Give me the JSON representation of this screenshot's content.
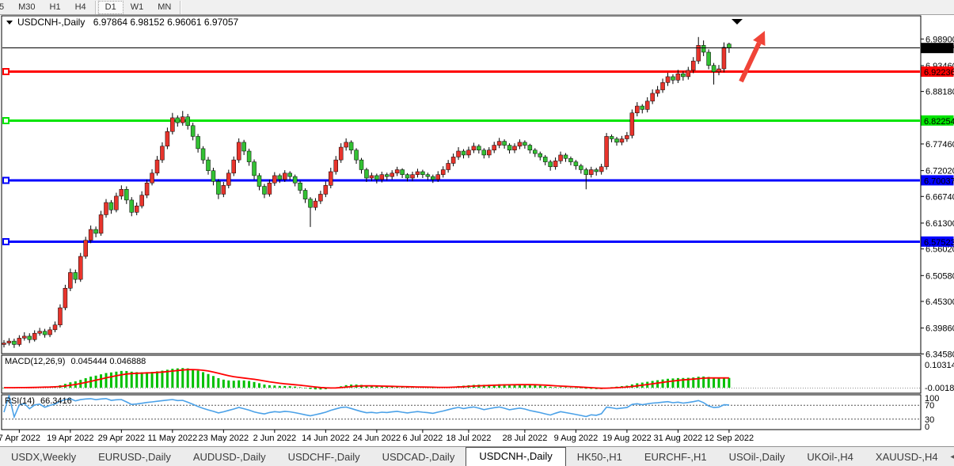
{
  "toolbar": {
    "timeframes": [
      "5",
      "M30",
      "H1",
      "H4",
      "D1",
      "W1",
      "MN"
    ],
    "active_timeframe": "D1"
  },
  "chart": {
    "symbol_label": "USDCNH-,Daily",
    "ohlc_label": "6.97864 6.98152 6.96061 6.97057"
  },
  "chart_data": {
    "type": "candlestick",
    "symbol": "USDCNH-",
    "timeframe": "Daily",
    "title": "USDCNH-,Daily",
    "last_ohlc": {
      "open": 6.97864,
      "high": 6.98152,
      "low": 6.96061,
      "close": 6.97057
    },
    "ylim": [
      6.3463,
      7.0363
    ],
    "grid": false,
    "up_candles_are_red": true,
    "price_axis_ticks": [
      "6.98900",
      "6.93460",
      "6.88180",
      "6.77460",
      "6.72020",
      "6.66740",
      "6.61300",
      "6.56020",
      "6.50580",
      "6.45300",
      "6.39860",
      "6.34580"
    ],
    "current_price": {
      "value": 6.97057,
      "label": "6.97057"
    },
    "hlines": [
      {
        "price": 6.92236,
        "label": "6.92236",
        "color": "#ff0000",
        "text_color": "#ffffff"
      },
      {
        "price": 6.82254,
        "label": "6.82254",
        "color": "#00e400",
        "text_color": "#000000"
      },
      {
        "price": 6.70037,
        "label": "6.70037",
        "color": "#0000ff",
        "text_color": "#ffffff"
      },
      {
        "price": 6.57523,
        "label": "6.57523",
        "color": "#0000ff",
        "text_color": "#ffffff"
      }
    ],
    "date_ticks": {
      "labels": [
        "7 Apr 2022",
        "19 Apr 2022",
        "29 Apr 2022",
        "11 May 2022",
        "23 May 2022",
        "2 Jun 2022",
        "14 Jun 2022",
        "24 Jun 2022",
        "6 Jul 2022",
        "18 Jul 2022",
        "28 Jul 2022",
        "9 Aug 2022",
        "19 Aug 2022",
        "31 Aug 2022",
        "12 Sep 2022"
      ],
      "candle_indices": [
        3,
        13,
        23,
        33,
        43,
        53,
        63,
        73,
        82,
        91,
        102,
        112,
        122,
        132,
        142
      ]
    },
    "indicators": {
      "macd": {
        "name_label": "MACD(12,26,9)",
        "values_label": "0.045444 0.046888",
        "axis_max": "0.103149",
        "axis_min": "-0.001805",
        "ylim": [
          -0.0249,
          0.146
        ],
        "hist_color": "#00c000",
        "signal_color": "#ff0000"
      },
      "rsi": {
        "name_label": "RSI(14)",
        "value_label": "66.3416",
        "levels": [
          "100",
          "70",
          "30",
          "0"
        ],
        "dashed_levels": [
          70,
          30
        ],
        "ylim": [
          0,
          100
        ],
        "line_color": "#4aa1e8"
      }
    },
    "annotations": [
      {
        "type": "up-arrow",
        "color": "#f04438",
        "tail": [
          936,
          84
        ],
        "tip": [
          966,
          20
        ]
      },
      {
        "type": "down-triangle-marker",
        "color": "#000000",
        "x": 931,
        "y": 5
      }
    ],
    "colors": {
      "bull_body": "#e8342c",
      "bear_body": "#33c133",
      "wick": "#000000",
      "panel_border": "#000000",
      "current_price_line": "#000000"
    },
    "ohlc": [
      [
        6.365,
        6.374,
        6.359,
        6.368
      ],
      [
        6.368,
        6.378,
        6.363,
        6.372
      ],
      [
        6.372,
        6.377,
        6.358,
        6.365
      ],
      [
        6.365,
        6.384,
        6.361,
        6.378
      ],
      [
        6.378,
        6.39,
        6.373,
        6.382
      ],
      [
        6.382,
        6.388,
        6.368,
        6.375
      ],
      [
        6.375,
        6.394,
        6.371,
        6.388
      ],
      [
        6.388,
        6.399,
        6.383,
        6.392
      ],
      [
        6.392,
        6.397,
        6.379,
        6.385
      ],
      [
        6.385,
        6.401,
        6.38,
        6.395
      ],
      [
        6.395,
        6.412,
        6.39,
        6.405
      ],
      [
        6.405,
        6.447,
        6.4,
        6.44
      ],
      [
        6.44,
        6.487,
        6.435,
        6.48
      ],
      [
        6.48,
        6.52,
        6.474,
        6.512
      ],
      [
        6.512,
        6.518,
        6.49,
        6.498
      ],
      [
        6.498,
        6.552,
        6.493,
        6.545
      ],
      [
        6.545,
        6.585,
        6.54,
        6.578
      ],
      [
        6.578,
        6.608,
        6.572,
        6.6
      ],
      [
        6.6,
        6.606,
        6.584,
        6.592
      ],
      [
        6.592,
        6.638,
        6.587,
        6.63
      ],
      [
        6.63,
        6.662,
        6.624,
        6.655
      ],
      [
        6.655,
        6.66,
        6.632,
        6.64
      ],
      [
        6.64,
        6.675,
        6.635,
        6.668
      ],
      [
        6.668,
        6.69,
        6.661,
        6.682
      ],
      [
        6.682,
        6.688,
        6.652,
        6.66
      ],
      [
        6.66,
        6.666,
        6.627,
        6.635
      ],
      [
        6.635,
        6.655,
        6.629,
        6.648
      ],
      [
        6.648,
        6.678,
        6.643,
        6.67
      ],
      [
        6.67,
        6.702,
        6.664,
        6.695
      ],
      [
        6.695,
        6.723,
        6.69,
        6.715
      ],
      [
        6.715,
        6.75,
        6.71,
        6.742
      ],
      [
        6.742,
        6.778,
        6.736,
        6.77
      ],
      [
        6.77,
        6.808,
        6.764,
        6.8
      ],
      [
        6.8,
        6.838,
        6.794,
        6.828
      ],
      [
        6.828,
        6.833,
        6.81,
        6.818
      ],
      [
        6.818,
        6.842,
        6.812,
        6.83
      ],
      [
        6.83,
        6.836,
        6.804,
        6.812
      ],
      [
        6.812,
        6.818,
        6.782,
        6.79
      ],
      [
        6.79,
        6.795,
        6.757,
        6.765
      ],
      [
        6.765,
        6.77,
        6.734,
        6.742
      ],
      [
        6.742,
        6.748,
        6.712,
        6.72
      ],
      [
        6.72,
        6.726,
        6.69,
        6.698
      ],
      [
        6.698,
        6.703,
        6.662,
        6.672
      ],
      [
        6.672,
        6.697,
        6.666,
        6.69
      ],
      [
        6.69,
        6.722,
        6.684,
        6.715
      ],
      [
        6.715,
        6.749,
        6.709,
        6.742
      ],
      [
        6.742,
        6.786,
        6.736,
        6.778
      ],
      [
        6.778,
        6.783,
        6.752,
        6.76
      ],
      [
        6.76,
        6.765,
        6.73,
        6.738
      ],
      [
        6.738,
        6.743,
        6.702,
        6.71
      ],
      [
        6.71,
        6.715,
        6.68,
        6.688
      ],
      [
        6.688,
        6.693,
        6.664,
        6.672
      ],
      [
        6.672,
        6.702,
        6.667,
        6.695
      ],
      [
        6.695,
        6.717,
        6.689,
        6.71
      ],
      [
        6.71,
        6.714,
        6.695,
        6.702
      ],
      [
        6.702,
        6.721,
        6.697,
        6.715
      ],
      [
        6.715,
        6.719,
        6.701,
        6.708
      ],
      [
        6.708,
        6.712,
        6.688,
        6.695
      ],
      [
        6.695,
        6.699,
        6.673,
        6.68
      ],
      [
        6.68,
        6.684,
        6.654,
        6.662
      ],
      [
        6.662,
        6.666,
        6.605,
        6.645
      ],
      [
        6.645,
        6.664,
        6.639,
        6.658
      ],
      [
        6.658,
        6.679,
        6.652,
        6.672
      ],
      [
        6.672,
        6.698,
        6.666,
        6.69
      ],
      [
        6.69,
        6.726,
        6.684,
        6.718
      ],
      [
        6.718,
        6.75,
        6.712,
        6.742
      ],
      [
        6.742,
        6.776,
        6.736,
        6.768
      ],
      [
        6.768,
        6.786,
        6.761,
        6.778
      ],
      [
        6.778,
        6.782,
        6.754,
        6.762
      ],
      [
        6.762,
        6.766,
        6.734,
        6.742
      ],
      [
        6.742,
        6.746,
        6.714,
        6.722
      ],
      [
        6.722,
        6.726,
        6.697,
        6.705
      ],
      [
        6.705,
        6.716,
        6.699,
        6.71
      ],
      [
        6.71,
        6.714,
        6.694,
        6.702
      ],
      [
        6.702,
        6.718,
        6.696,
        6.712
      ],
      [
        6.712,
        6.716,
        6.7,
        6.708
      ],
      [
        6.708,
        6.721,
        6.702,
        6.715
      ],
      [
        6.715,
        6.728,
        6.709,
        6.722
      ],
      [
        6.722,
        6.725,
        6.705,
        6.712
      ],
      [
        6.712,
        6.715,
        6.698,
        6.705
      ],
      [
        6.705,
        6.718,
        6.699,
        6.712
      ],
      [
        6.712,
        6.724,
        6.706,
        6.718
      ],
      [
        6.718,
        6.722,
        6.705,
        6.712
      ],
      [
        6.712,
        6.716,
        6.701,
        6.708
      ],
      [
        6.708,
        6.712,
        6.695,
        6.702
      ],
      [
        6.702,
        6.719,
        6.697,
        6.712
      ],
      [
        6.712,
        6.729,
        6.706,
        6.722
      ],
      [
        6.722,
        6.742,
        6.716,
        6.735
      ],
      [
        6.735,
        6.755,
        6.729,
        6.748
      ],
      [
        6.748,
        6.768,
        6.742,
        6.76
      ],
      [
        6.76,
        6.764,
        6.745,
        6.752
      ],
      [
        6.752,
        6.769,
        6.746,
        6.762
      ],
      [
        6.762,
        6.777,
        6.756,
        6.77
      ],
      [
        6.77,
        6.774,
        6.755,
        6.762
      ],
      [
        6.762,
        6.766,
        6.745,
        6.752
      ],
      [
        6.752,
        6.768,
        6.746,
        6.762
      ],
      [
        6.762,
        6.779,
        6.756,
        6.772
      ],
      [
        6.772,
        6.787,
        6.766,
        6.78
      ],
      [
        6.78,
        6.784,
        6.765,
        6.772
      ],
      [
        6.772,
        6.776,
        6.755,
        6.762
      ],
      [
        6.762,
        6.776,
        6.756,
        6.77
      ],
      [
        6.77,
        6.784,
        6.764,
        6.778
      ],
      [
        6.778,
        6.782,
        6.765,
        6.772
      ],
      [
        6.772,
        6.775,
        6.755,
        6.762
      ],
      [
        6.762,
        6.766,
        6.748,
        6.755
      ],
      [
        6.755,
        6.759,
        6.741,
        6.748
      ],
      [
        6.748,
        6.752,
        6.731,
        6.738
      ],
      [
        6.738,
        6.742,
        6.72,
        6.728
      ],
      [
        6.728,
        6.747,
        6.722,
        6.74
      ],
      [
        6.74,
        6.759,
        6.734,
        6.752
      ],
      [
        6.752,
        6.756,
        6.738,
        6.745
      ],
      [
        6.745,
        6.749,
        6.731,
        6.738
      ],
      [
        6.738,
        6.742,
        6.722,
        6.73
      ],
      [
        6.73,
        6.734,
        6.714,
        6.722
      ],
      [
        6.722,
        6.726,
        6.682,
        6.712
      ],
      [
        6.712,
        6.728,
        6.706,
        6.722
      ],
      [
        6.722,
        6.726,
        6.71,
        6.718
      ],
      [
        6.718,
        6.734,
        6.712,
        6.728
      ],
      [
        6.728,
        6.797,
        6.722,
        6.79
      ],
      [
        6.79,
        6.794,
        6.778,
        6.785
      ],
      [
        6.785,
        6.789,
        6.771,
        6.778
      ],
      [
        6.778,
        6.791,
        6.772,
        6.785
      ],
      [
        6.785,
        6.799,
        6.779,
        6.792
      ],
      [
        6.792,
        6.845,
        6.786,
        6.838
      ],
      [
        6.838,
        6.86,
        6.831,
        6.852
      ],
      [
        6.852,
        6.856,
        6.837,
        6.845
      ],
      [
        6.845,
        6.87,
        6.839,
        6.862
      ],
      [
        6.862,
        6.886,
        6.856,
        6.878
      ],
      [
        6.878,
        6.893,
        6.871,
        6.885
      ],
      [
        6.885,
        6.908,
        6.879,
        6.9
      ],
      [
        6.9,
        6.92,
        6.893,
        6.912
      ],
      [
        6.912,
        6.917,
        6.897,
        6.905
      ],
      [
        6.905,
        6.926,
        6.899,
        6.918
      ],
      [
        6.918,
        6.923,
        6.904,
        6.912
      ],
      [
        6.912,
        6.932,
        6.906,
        6.925
      ],
      [
        6.925,
        6.952,
        6.919,
        6.944
      ],
      [
        6.944,
        6.993,
        6.938,
        6.976
      ],
      [
        6.976,
        6.986,
        6.954,
        6.962
      ],
      [
        6.962,
        6.968,
        6.927,
        6.935
      ],
      [
        6.935,
        6.94,
        6.896,
        6.922
      ],
      [
        6.922,
        6.936,
        6.915,
        6.928
      ],
      [
        6.928,
        6.982,
        6.921,
        6.972
      ],
      [
        6.97864,
        6.98152,
        6.96061,
        6.97057
      ]
    ]
  },
  "tabs": {
    "items": [
      "USDX,Weekly",
      "EURUSD-,Daily",
      "AUDUSD-,Daily",
      "USDCHF-,Daily",
      "USDCAD-,Daily",
      "USDCNH-,Daily",
      "HK50-,H1",
      "EURCHF-,H1",
      "USOil-,Daily",
      "UKOil-,H4",
      "XAUUSD-,H4"
    ],
    "active": "USDCNH-,Daily",
    "scroll_left_glyph": "◄",
    "scroll_right_glyph": "►"
  }
}
